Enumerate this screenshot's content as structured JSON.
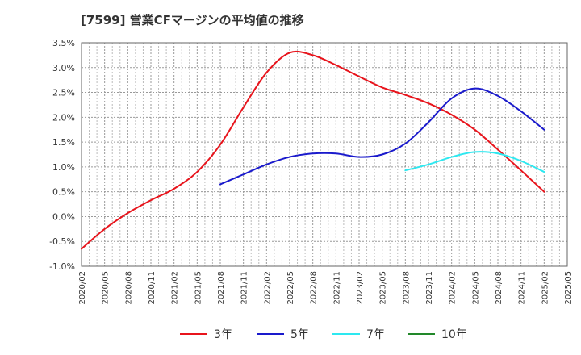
{
  "chart_data": {
    "type": "line",
    "title": "[7599]  営業CFマージンの平均値の推移",
    "y_tick_labels": [
      "3.5%",
      "3.0%",
      "2.5%",
      "2.0%",
      "1.5%",
      "1.0%",
      "0.5%",
      "0.0%",
      "-0.5%",
      "-1.0%"
    ],
    "x_tick_labels": [
      "2020/02",
      "2020/05",
      "2020/08",
      "2020/11",
      "2021/02",
      "2021/05",
      "2021/08",
      "2021/11",
      "2022/02",
      "2022/05",
      "2022/08",
      "2022/11",
      "2023/02",
      "2023/05",
      "2023/08",
      "2023/11",
      "2024/02",
      "2024/05",
      "2024/08",
      "2024/11",
      "2025/02",
      "2025/05"
    ],
    "ylim": [
      -1.0,
      3.5
    ],
    "grid": true,
    "legend_position": "bottom",
    "series": [
      {
        "name": "3年",
        "color": "#e8141c",
        "x": [
          "2020/02",
          "2020/05",
          "2020/08",
          "2020/11",
          "2021/02",
          "2021/05",
          "2021/08",
          "2021/11",
          "2022/02",
          "2022/05",
          "2022/08",
          "2022/11",
          "2023/02",
          "2023/05",
          "2023/08",
          "2023/11",
          "2024/02",
          "2024/05",
          "2024/08",
          "2024/11",
          "2025/02"
        ],
        "values": [
          -0.65,
          -0.25,
          0.07,
          0.33,
          0.56,
          0.9,
          1.45,
          2.2,
          2.9,
          3.3,
          3.25,
          3.05,
          2.82,
          2.6,
          2.45,
          2.28,
          2.05,
          1.75,
          1.35,
          0.93,
          0.5
        ]
      },
      {
        "name": "5年",
        "color": "#1a1acc",
        "x": [
          "2021/08",
          "2021/11",
          "2022/02",
          "2022/05",
          "2022/08",
          "2022/11",
          "2023/02",
          "2023/05",
          "2023/08",
          "2023/11",
          "2024/02",
          "2024/05",
          "2024/08",
          "2024/11",
          "2025/02"
        ],
        "values": [
          0.65,
          0.85,
          1.05,
          1.2,
          1.27,
          1.27,
          1.2,
          1.25,
          1.47,
          1.9,
          2.38,
          2.58,
          2.43,
          2.12,
          1.75
        ]
      },
      {
        "name": "7年",
        "color": "#2de8f0",
        "x": [
          "2023/08",
          "2023/11",
          "2024/02",
          "2024/05",
          "2024/08",
          "2024/11",
          "2025/02"
        ],
        "values": [
          0.93,
          1.05,
          1.2,
          1.3,
          1.27,
          1.12,
          0.9
        ]
      },
      {
        "name": "10年",
        "color": "#22882a",
        "x": [],
        "values": []
      }
    ]
  }
}
